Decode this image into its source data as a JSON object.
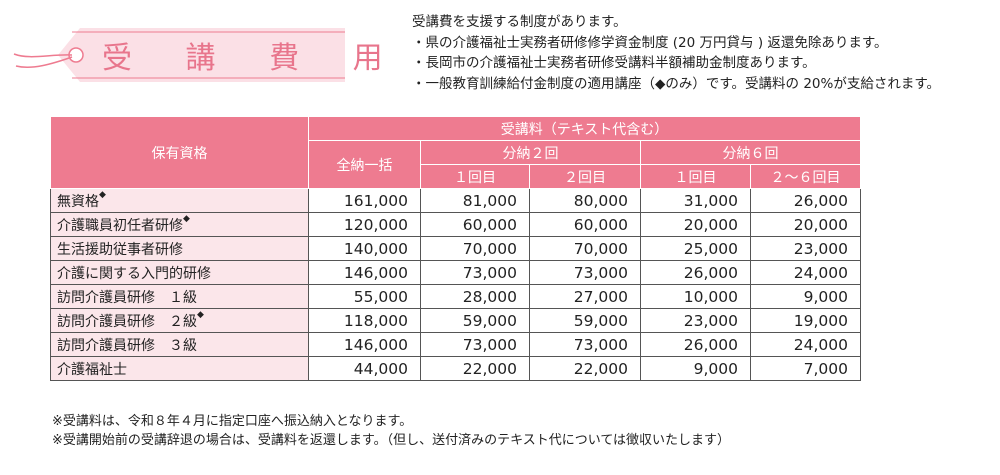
{
  "title": "受 講 費 用",
  "info": [
    "受講費を支援する制度があります。",
    "・県の介護福祉士実務者研修修学資金制度 (20 万円貸与 ) 返還免除あります。",
    "・長岡市の介護福祉士実務者研修受講料半額補助金制度あります。",
    "・一般教育訓練給付金制度の適用講座（◆のみ）です。受講料の 20%が支給されます。"
  ],
  "table": {
    "header_qualification": "保有資格",
    "header_fee": "受講料（テキスト代含む）",
    "header_lump": "全納一括",
    "header_install2": "分納２回",
    "header_install6": "分納６回",
    "header_1st": "１回目",
    "header_2nd": "２回目",
    "header_1st_b": "１回目",
    "header_2to6": "２〜６回目",
    "rows": [
      {
        "label": "無資格",
        "mark": "◆",
        "lump": "161,000",
        "i2a": "81,000",
        "i2b": "80,000",
        "i6a": "31,000",
        "i6b": "26,000"
      },
      {
        "label": "介護職員初任者研修",
        "mark": "◆",
        "lump": "120,000",
        "i2a": "60,000",
        "i2b": "60,000",
        "i6a": "20,000",
        "i6b": "20,000"
      },
      {
        "label": "生活援助従事者研修",
        "mark": "",
        "lump": "140,000",
        "i2a": "70,000",
        "i2b": "70,000",
        "i6a": "25,000",
        "i6b": "23,000"
      },
      {
        "label": "介護に関する入門的研修",
        "mark": "",
        "lump": "146,000",
        "i2a": "73,000",
        "i2b": "73,000",
        "i6a": "26,000",
        "i6b": "24,000"
      },
      {
        "label": "訪問介護員研修　１級",
        "mark": "",
        "lump": "55,000",
        "i2a": "28,000",
        "i2b": "27,000",
        "i6a": "10,000",
        "i6b": "9,000"
      },
      {
        "label": "訪問介護員研修　２級",
        "mark": "◆",
        "lump": "118,000",
        "i2a": "59,000",
        "i2b": "59,000",
        "i6a": "23,000",
        "i6b": "19,000"
      },
      {
        "label": "訪問介護員研修　３級",
        "mark": "",
        "lump": "146,000",
        "i2a": "73,000",
        "i2b": "73,000",
        "i6a": "26,000",
        "i6b": "24,000"
      },
      {
        "label": "介護福祉士",
        "mark": "",
        "lump": "44,000",
        "i2a": "22,000",
        "i2b": "22,000",
        "i6a": "9,000",
        "i6b": "7,000"
      }
    ]
  },
  "notes": [
    "※受講料は、令和８年４月に指定口座へ振込納入となります。",
    "※受講開始前の受講辞退の場合は、受講料を返還します。（但し、送付済みのテキスト代については徴収いたします）"
  ],
  "colors": {
    "accent": "#ee7b90",
    "tag_bg": "#fbe0e6",
    "row_label_bg": "#fbe6ea"
  },
  "icons": {
    "tag": "tag-icon"
  }
}
